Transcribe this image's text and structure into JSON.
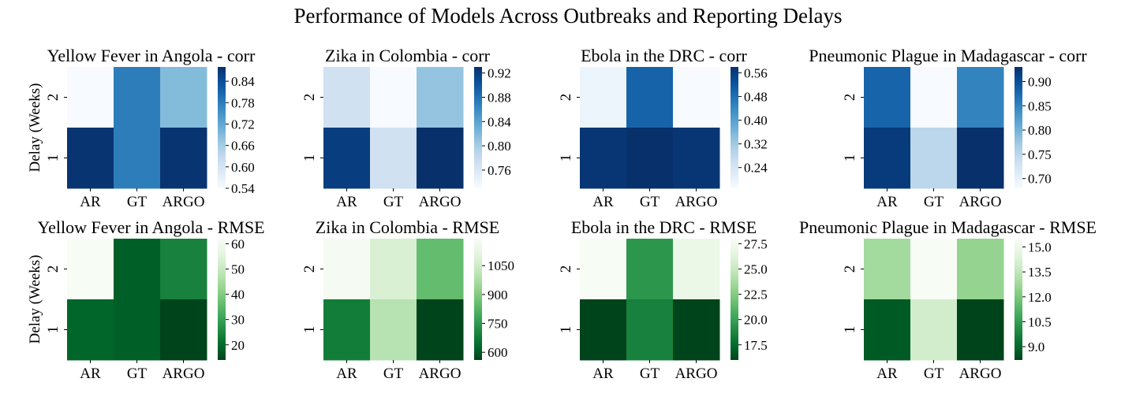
{
  "figure": {
    "title": "Performance of Models Across Outbreaks and Reporting Delays",
    "colors": {
      "corr_colormap": "Blues",
      "rmse_colormap": "Greens_r"
    }
  },
  "chart_data": [
    {
      "type": "heatmap",
      "title": "Yellow Fever in Angola - corr",
      "xlabel": "",
      "ylabel": "Delay (Weeks)",
      "x_categories": [
        "AR",
        "GT",
        "ARGO"
      ],
      "y_categories": [
        "2",
        "1"
      ],
      "values": [
        [
          0.54,
          0.78,
          0.69
        ],
        [
          0.875,
          0.78,
          0.875
        ]
      ],
      "colormap": "Blues",
      "colorbar_range": [
        0.54,
        0.88
      ],
      "colorbar_ticks": [
        "0.54",
        "0.60",
        "0.66",
        "0.72",
        "0.78",
        "0.84"
      ]
    },
    {
      "type": "heatmap",
      "title": "Zika in Colombia - corr",
      "xlabel": "",
      "ylabel": "",
      "x_categories": [
        "AR",
        "GT",
        "ARGO"
      ],
      "y_categories": [
        "2",
        "1"
      ],
      "values": [
        [
          0.77,
          0.73,
          0.81
        ],
        [
          0.92,
          0.77,
          0.93
        ]
      ],
      "colormap": "Blues",
      "colorbar_range": [
        0.73,
        0.93
      ],
      "colorbar_ticks": [
        "0.76",
        "0.80",
        "0.84",
        "0.88",
        "0.92"
      ]
    },
    {
      "type": "heatmap",
      "title": "Ebola in the DRC - corr",
      "xlabel": "",
      "ylabel": "",
      "x_categories": [
        "AR",
        "GT",
        "ARGO"
      ],
      "y_categories": [
        "2",
        "1"
      ],
      "values": [
        [
          0.19,
          0.5,
          0.17
        ],
        [
          0.57,
          0.58,
          0.57
        ]
      ],
      "colormap": "Blues",
      "colorbar_range": [
        0.17,
        0.58
      ],
      "colorbar_ticks": [
        "0.24",
        "0.32",
        "0.40",
        "0.48",
        "0.56"
      ]
    },
    {
      "type": "heatmap",
      "title": "Pneumonic Plague in Madagascar - corr",
      "xlabel": "",
      "ylabel": "",
      "x_categories": [
        "AR",
        "GT",
        "ARGO"
      ],
      "y_categories": [
        "2",
        "1"
      ],
      "values": [
        [
          0.88,
          0.68,
          0.85
        ],
        [
          0.92,
          0.75,
          0.93
        ]
      ],
      "colormap": "Blues",
      "colorbar_range": [
        0.68,
        0.93
      ],
      "colorbar_ticks": [
        "0.70",
        "0.75",
        "0.80",
        "0.85",
        "0.90"
      ]
    },
    {
      "type": "heatmap",
      "title": "Yellow Fever in Angola - RMSE",
      "xlabel": "",
      "ylabel": "Delay (Weeks)",
      "x_categories": [
        "AR",
        "GT",
        "ARGO"
      ],
      "y_categories": [
        "2",
        "1"
      ],
      "values": [
        [
          62,
          18,
          24
        ],
        [
          19,
          18,
          14
        ]
      ],
      "colormap": "Greens_r",
      "colorbar_range": [
        14,
        62
      ],
      "colorbar_ticks": [
        "20",
        "30",
        "40",
        "50",
        "60"
      ]
    },
    {
      "type": "heatmap",
      "title": "Zika in Colombia - RMSE",
      "xlabel": "",
      "ylabel": "",
      "x_categories": [
        "AR",
        "GT",
        "ARGO"
      ],
      "y_categories": [
        "2",
        "1"
      ],
      "values": [
        [
          1180,
          1080,
          850
        ],
        [
          680,
          1000,
          560
        ]
      ],
      "colormap": "Greens_r",
      "colorbar_range": [
        560,
        1190
      ],
      "colorbar_ticks": [
        "600",
        "750",
        "900",
        "1050"
      ]
    },
    {
      "type": "heatmap",
      "title": "Ebola in the DRC - RMSE",
      "xlabel": "",
      "ylabel": "",
      "x_categories": [
        "AR",
        "GT",
        "ARGO"
      ],
      "y_categories": [
        "2",
        "1"
      ],
      "values": [
        [
          28.0,
          19.5,
          27.0
        ],
        [
          16.0,
          18.5,
          16.0
        ]
      ],
      "colormap": "Greens_r",
      "colorbar_range": [
        16.0,
        28.0
      ],
      "colorbar_ticks": [
        "17.5",
        "20.0",
        "22.5",
        "25.0",
        "27.5"
      ]
    },
    {
      "type": "heatmap",
      "title": "Pneumonic Plague in Madagascar - RMSE",
      "xlabel": "",
      "ylabel": "",
      "x_categories": [
        "AR",
        "GT",
        "ARGO"
      ],
      "y_categories": [
        "2",
        "1"
      ],
      "values": [
        [
          12.8,
          15.5,
          12.5
        ],
        [
          8.7,
          14.0,
          8.2
        ]
      ],
      "colormap": "Greens_r",
      "colorbar_range": [
        8.2,
        15.5
      ],
      "colorbar_ticks": [
        "9.0",
        "10.5",
        "12.0",
        "13.5",
        "15.0"
      ]
    }
  ]
}
